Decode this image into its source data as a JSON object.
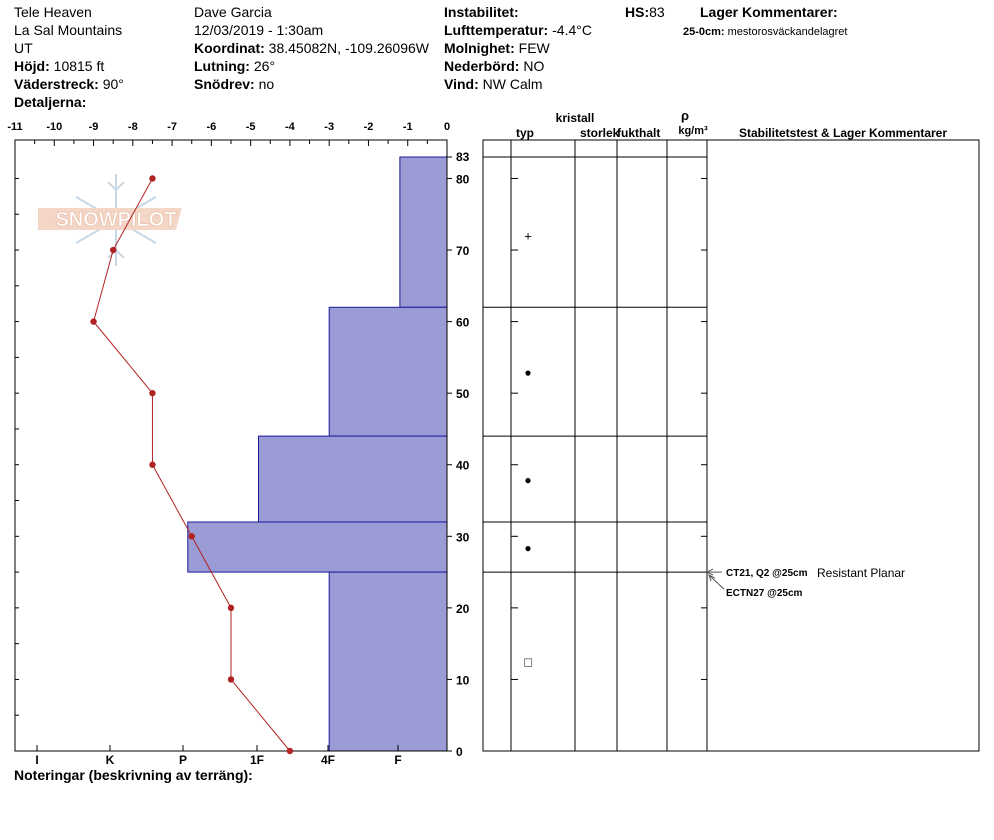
{
  "header": {
    "location": "Tele Heaven",
    "range": "La Sal Mountains",
    "state": "UT",
    "elevation_label": "Höjd:",
    "elevation_value": "10815 ft",
    "aspect_label": "Väderstreck:",
    "aspect_value": "90°",
    "details_label": "Detaljerna:",
    "observer": "Dave Garcia",
    "datetime": "12/03/2019 - 1:30am",
    "coord_label": "Koordinat:",
    "coord_value": "38.45082N, -109.26096W",
    "slope_label": "Lutning:",
    "slope_value": "26°",
    "drift_label": "Snödrev:",
    "drift_value": "no",
    "instability_label": "Instabilitet:",
    "airtemp_label": "Lufttemperatur:",
    "airtemp_value": "-4.4°C",
    "cloud_label": "Molnighet:",
    "cloud_value": "FEW",
    "precip_label": "Nederbörd:",
    "precip_value": "NO",
    "wind_label": "Vind:",
    "wind_value": "NW Calm",
    "hs_label": "HS:",
    "hs_value": "83",
    "layer_comments_label": "Lager Kommentarer:",
    "layer_comment_depth": "25-0cm:",
    "layer_comment_text": "mestorosväckandelagret"
  },
  "logo_text": "SNOWPILOT",
  "notes_label": "Noteringar (beskrivning av terräng):",
  "right_table": {
    "col_typ": "typ",
    "col_kristall": "kristall",
    "col_storlek": "storlek",
    "col_fukthalt": "fukthalt",
    "col_rho": "ρ",
    "col_density_unit": "kg/m³",
    "col_stability": "Stabilitetstest & Lager Kommentarer"
  },
  "stability_tests": [
    {
      "label": "CT21, Q2 @25cm",
      "comment": "Resistant Planar",
      "depth": 25
    },
    {
      "label": "ECTN27 @25cm",
      "comment": "",
      "depth": 25
    }
  ],
  "chart_data": {
    "type": "snow_profile",
    "temperature_axis": {
      "range": [
        -11,
        0
      ],
      "ticks": [
        "-11",
        "-10",
        "-9",
        "-8",
        "-7",
        "-6",
        "-5",
        "-4",
        "-3",
        "-2",
        "-1",
        "0"
      ]
    },
    "hardness_axis": {
      "labels": [
        "I",
        "K",
        "P",
        "1F",
        "4F",
        "F"
      ]
    },
    "height_axis": {
      "range": [
        0,
        83
      ],
      "ticks": [
        0,
        10,
        20,
        30,
        40,
        50,
        60,
        70,
        80,
        83
      ]
    },
    "temperature_profile": [
      {
        "height": 80,
        "temp": -7.5
      },
      {
        "height": 70,
        "temp": -8.5
      },
      {
        "height": 60,
        "temp": -9.0
      },
      {
        "height": 50,
        "temp": -7.5
      },
      {
        "height": 40,
        "temp": -7.5
      },
      {
        "height": 30,
        "temp": -6.5
      },
      {
        "height": 20,
        "temp": -5.5
      },
      {
        "height": 10,
        "temp": -5.5
      },
      {
        "height": 0,
        "temp": -4.0
      }
    ],
    "hardness_layers": [
      {
        "top": 83,
        "bottom": 62,
        "temp_extent": -1.2
      },
      {
        "top": 62,
        "bottom": 44,
        "temp_extent": -3.0
      },
      {
        "top": 44,
        "bottom": 32,
        "temp_extent": -4.8
      },
      {
        "top": 32,
        "bottom": 25,
        "temp_extent": -6.6
      },
      {
        "top": 25,
        "bottom": 0,
        "temp_extent": -3.0
      }
    ],
    "layer_boundaries": [
      83,
      62,
      44,
      32,
      25
    ],
    "grain_symbols": [
      {
        "height": 72,
        "symbol": "+"
      },
      {
        "height": 53,
        "symbol": "●"
      },
      {
        "height": 38,
        "symbol": "●"
      },
      {
        "height": 28.5,
        "symbol": "●"
      },
      {
        "height": 12.5,
        "symbol": "□"
      }
    ],
    "colors": {
      "hardness_fill": "#9b9bd6",
      "hardness_stroke": "#1a1a9a",
      "temperature_line": "#b22222"
    }
  }
}
